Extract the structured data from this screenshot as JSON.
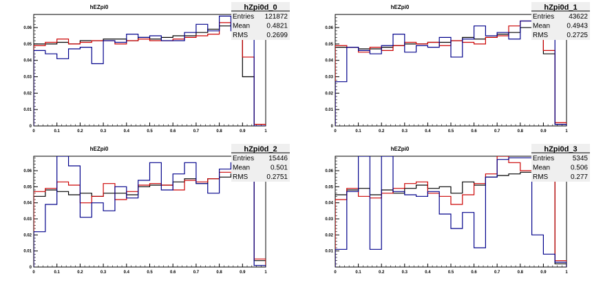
{
  "chart_data": [
    {
      "type": "histogram",
      "title": "hEZpi0",
      "stats": {
        "name": "hZpi0d_0",
        "entries": "121872",
        "mean": "0.4821",
        "rms": "0.2699"
      },
      "stats_labels": {
        "entries": "Entries",
        "mean": "Mean",
        "rms": "RMS"
      },
      "xlim": [
        0,
        1
      ],
      "ylim": [
        0,
        0.068
      ],
      "xticks": [
        "0",
        "0.1",
        "0.2",
        "0.3",
        "0.4",
        "0.5",
        "0.6",
        "0.7",
        "0.8",
        "0.9",
        "1"
      ],
      "yticks": [
        "0",
        "0.01",
        "0.02",
        "0.03",
        "0.04",
        "0.05",
        "0.06"
      ],
      "bin_edges": [
        0,
        0.05,
        0.1,
        0.15,
        0.2,
        0.25,
        0.3,
        0.35,
        0.4,
        0.45,
        0.5,
        0.55,
        0.6,
        0.65,
        0.7,
        0.75,
        0.8,
        0.85,
        0.9,
        0.95,
        1.0
      ],
      "series": [
        {
          "color": "#000000",
          "values": [
            0.05,
            0.05,
            0.051,
            0.05,
            0.052,
            0.052,
            0.053,
            0.053,
            0.052,
            0.054,
            0.053,
            0.054,
            0.055,
            0.055,
            0.057,
            0.059,
            0.061,
            0.062,
            0.03,
            0.001
          ]
        },
        {
          "color": "#cc0000",
          "values": [
            0.049,
            0.051,
            0.053,
            0.05,
            0.051,
            0.052,
            0.052,
            0.05,
            0.052,
            0.053,
            0.052,
            0.052,
            0.053,
            0.054,
            0.055,
            0.056,
            0.063,
            0.063,
            0.042,
            0.001
          ]
        },
        {
          "color": "#00008b",
          "values": [
            0.046,
            0.044,
            0.041,
            0.047,
            0.048,
            0.038,
            0.052,
            0.051,
            0.056,
            0.054,
            0.055,
            0.052,
            0.052,
            0.057,
            0.062,
            0.058,
            0.067,
            0.058,
            0.06,
            0.0
          ]
        }
      ]
    },
    {
      "type": "histogram",
      "title": "hEZpi0",
      "stats": {
        "name": "hZpi0d_1",
        "entries": "43622",
        "mean": "0.4943",
        "rms": "0.2725"
      },
      "stats_labels": {
        "entries": "Entries",
        "mean": "Mean",
        "rms": "RMS"
      },
      "xlim": [
        0,
        1
      ],
      "ylim": [
        0,
        0.068
      ],
      "xticks": [
        "0",
        "0.1",
        "0.2",
        "0.3",
        "0.4",
        "0.5",
        "0.6",
        "0.7",
        "0.8",
        "0.9",
        "1"
      ],
      "yticks": [
        "0",
        "0.01",
        "0.02",
        "0.03",
        "0.04",
        "0.05",
        "0.06"
      ],
      "bin_edges": [
        0,
        0.05,
        0.1,
        0.15,
        0.2,
        0.25,
        0.3,
        0.35,
        0.4,
        0.45,
        0.5,
        0.55,
        0.6,
        0.65,
        0.7,
        0.75,
        0.8,
        0.85,
        0.9,
        0.95,
        1.0
      ],
      "series": [
        {
          "color": "#000000",
          "values": [
            0.048,
            0.048,
            0.047,
            0.047,
            0.048,
            0.049,
            0.05,
            0.05,
            0.051,
            0.051,
            0.052,
            0.054,
            0.053,
            0.054,
            0.056,
            0.057,
            0.06,
            0.061,
            0.044,
            0.001
          ]
        },
        {
          "color": "#cc0000",
          "values": [
            0.049,
            0.048,
            0.045,
            0.048,
            0.046,
            0.049,
            0.051,
            0.05,
            0.051,
            0.049,
            0.052,
            0.051,
            0.05,
            0.054,
            0.055,
            0.061,
            0.064,
            0.065,
            0.046,
            0.002
          ]
        },
        {
          "color": "#00008b",
          "values": [
            0.027,
            0.048,
            0.046,
            0.044,
            0.049,
            0.056,
            0.045,
            0.049,
            0.048,
            0.054,
            0.042,
            0.053,
            0.061,
            0.055,
            0.057,
            0.053,
            0.064,
            0.067,
            0.053,
            0.001
          ]
        }
      ]
    },
    {
      "type": "histogram",
      "title": "hEZpi0",
      "stats": {
        "name": "hZpi0d_2",
        "entries": "15446",
        "mean": "0.501",
        "rms": "0.2751"
      },
      "stats_labels": {
        "entries": "Entries",
        "mean": "Mean",
        "rms": "RMS"
      },
      "xlim": [
        0,
        1
      ],
      "ylim": [
        0,
        0.069
      ],
      "xticks": [
        "0",
        "0.1",
        "0.2",
        "0.3",
        "0.4",
        "0.5",
        "0.6",
        "0.7",
        "0.8",
        "0.9",
        "1"
      ],
      "yticks": [
        "0",
        "0.01",
        "0.02",
        "0.03",
        "0.04",
        "0.05",
        "0.06"
      ],
      "bin_edges": [
        0,
        0.05,
        0.1,
        0.15,
        0.2,
        0.25,
        0.3,
        0.35,
        0.4,
        0.45,
        0.5,
        0.55,
        0.6,
        0.65,
        0.7,
        0.75,
        0.8,
        0.85,
        0.9,
        0.95,
        1.0
      ],
      "series": [
        {
          "color": "#000000",
          "values": [
            0.044,
            0.048,
            0.047,
            0.045,
            0.046,
            0.044,
            0.046,
            0.046,
            0.045,
            0.05,
            0.051,
            0.051,
            0.053,
            0.055,
            0.052,
            0.055,
            0.056,
            0.058,
            0.056,
            0.004
          ]
        },
        {
          "color": "#cc0000",
          "values": [
            0.047,
            0.049,
            0.053,
            0.051,
            0.04,
            0.044,
            0.052,
            0.042,
            0.047,
            0.051,
            0.052,
            0.051,
            0.048,
            0.054,
            0.053,
            0.055,
            0.059,
            0.059,
            0.06,
            0.005
          ]
        },
        {
          "color": "#00008b",
          "values": [
            0.022,
            0.039,
            0.069,
            0.063,
            0.031,
            0.04,
            0.035,
            0.05,
            0.043,
            0.054,
            0.065,
            0.048,
            0.058,
            0.065,
            0.052,
            0.046,
            0.061,
            0.065,
            0.068,
            0.001
          ]
        }
      ]
    },
    {
      "type": "histogram",
      "title": "hEZpi0",
      "stats": {
        "name": "hZpi0d_3",
        "entries": "5345",
        "mean": "0.506",
        "rms": "0.277"
      },
      "stats_labels": {
        "entries": "Entries",
        "mean": "Mean",
        "rms": "RMS"
      },
      "xlim": [
        0,
        1
      ],
      "ylim": [
        0,
        0.069
      ],
      "xticks": [
        "0",
        "0.1",
        "0.2",
        "0.3",
        "0.4",
        "0.5",
        "0.6",
        "0.7",
        "0.8",
        "0.9",
        "1"
      ],
      "yticks": [
        "0.01",
        "0.02",
        "0.03",
        "0.04",
        "0.05",
        "0.06"
      ],
      "bin_edges": [
        0,
        0.05,
        0.1,
        0.15,
        0.2,
        0.25,
        0.3,
        0.35,
        0.4,
        0.45,
        0.5,
        0.55,
        0.6,
        0.65,
        0.7,
        0.75,
        0.8,
        0.85,
        0.9,
        0.95,
        1.0
      ],
      "series": [
        {
          "color": "#000000",
          "values": [
            0.045,
            0.048,
            0.049,
            0.045,
            0.048,
            0.046,
            0.049,
            0.051,
            0.049,
            0.05,
            0.046,
            0.053,
            0.051,
            0.056,
            0.057,
            0.058,
            0.059,
            0.061,
            0.063,
            0.002
          ]
        },
        {
          "color": "#cc0000",
          "values": [
            0.042,
            0.049,
            0.044,
            0.043,
            0.046,
            0.049,
            0.052,
            0.053,
            0.046,
            0.044,
            0.039,
            0.045,
            0.052,
            0.058,
            0.069,
            0.065,
            0.06,
            0.058,
            0.068,
            0.004
          ]
        },
        {
          "color": "#00008b",
          "values": [
            0.011,
            0.047,
            0.069,
            0.011,
            0.069,
            0.047,
            0.045,
            0.044,
            0.047,
            0.033,
            0.024,
            0.034,
            0.012,
            0.056,
            0.067,
            0.068,
            0.068,
            0.02,
            0.008,
            0.003
          ]
        }
      ]
    }
  ]
}
